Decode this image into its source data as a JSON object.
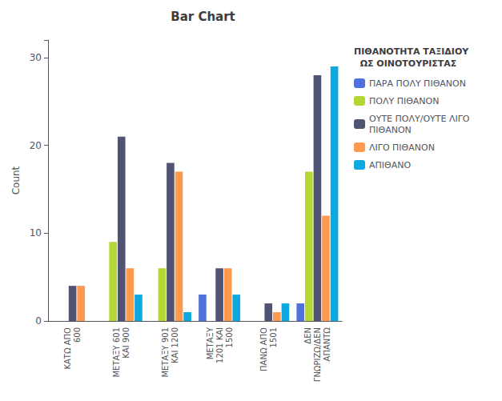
{
  "chart_data": {
    "type": "bar",
    "title": "Bar Chart",
    "ylabel": "Count",
    "legend_title": "ΠΙΘΑΝΟΤΗΤΑ ΤΑΞΙΔΙΟΥ\n  ΩΣ ΟΙΝΟΤΟΥΡΙΣΤΑΣ",
    "categories": [
      "ΚΑΤΩ ΑΠΟ\n600",
      "ΜΕΤΑΞΥ 601\nΚΑΙ 900",
      "ΜΕΤΑΞΥ 901\nΚΑΙ 1200",
      "ΜΕΤΑΞΥ\n1201 ΚΑΙ\n1500",
      "ΠΑΝΩ ΑΠΟ\n1501",
      "ΔΕΝ\nΓΝΩΡΙΖΩ/ΔΕΝ\nΑΠΑΝΤΩ"
    ],
    "series": [
      {
        "name": "ΠΑΡΑ ΠΟΛΥ ΠΙΘΑΝΟΝ",
        "values": [
          0,
          0,
          0,
          3,
          0,
          2
        ]
      },
      {
        "name": "ΠΟΛΥ ΠΙΘΑΝΟΝ",
        "values": [
          0,
          9,
          6,
          0,
          0,
          17
        ]
      },
      {
        "name": "ΟΥΤΕ ΠΟΛΥ/ΟΥΤΕ ΛΙΓΟ\nΠΙΘΑΝΟΝ",
        "values": [
          4,
          21,
          18,
          6,
          2,
          28
        ]
      },
      {
        "name": "ΛΙΓΟ ΠΙΘΑΝΟΝ",
        "values": [
          4,
          6,
          17,
          6,
          1,
          12
        ]
      },
      {
        "name": "ΑΠΙΘΑΝΟ",
        "values": [
          0,
          3,
          1,
          3,
          2,
          29
        ]
      }
    ],
    "ylim": [
      0,
      32
    ],
    "yticks": [
      0,
      10,
      20,
      30
    ],
    "grid": false,
    "legend": "right"
  }
}
